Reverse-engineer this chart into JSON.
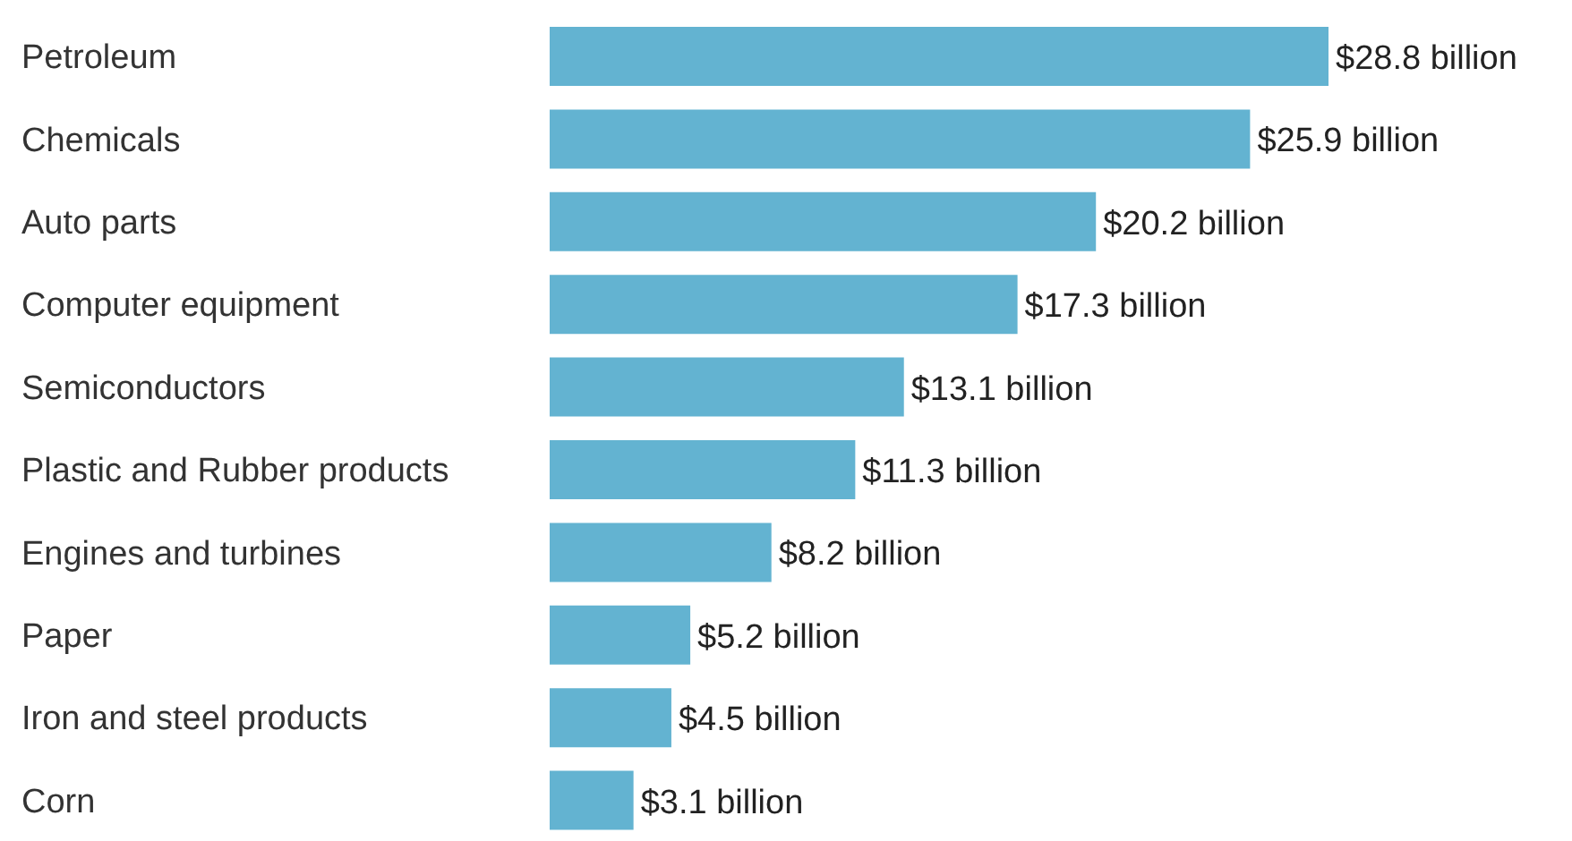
{
  "chart_data": {
    "type": "bar",
    "orientation": "horizontal",
    "categories": [
      "Petroleum",
      "Chemicals",
      "Auto parts",
      "Computer equipment",
      "Semiconductors",
      "Plastic and Rubber products",
      "Engines and turbines",
      "Paper",
      "Iron and steel products",
      "Corn"
    ],
    "values": [
      28.8,
      25.9,
      20.2,
      17.3,
      13.1,
      11.3,
      8.2,
      5.2,
      4.5,
      3.1
    ],
    "value_labels": [
      "$28.8 billion",
      "$25.9 billion",
      "$20.2 billion",
      "$17.3 billion",
      "$13.1 billion",
      "$11.3 billion",
      "$8.2 billion",
      "$5.2 billion",
      "$4.5 billion",
      "$3.1 billion"
    ],
    "color": "#63b3d1",
    "xlim": [
      0,
      28.8
    ],
    "tick_labels": "y",
    "grid": false,
    "legend": false
  }
}
